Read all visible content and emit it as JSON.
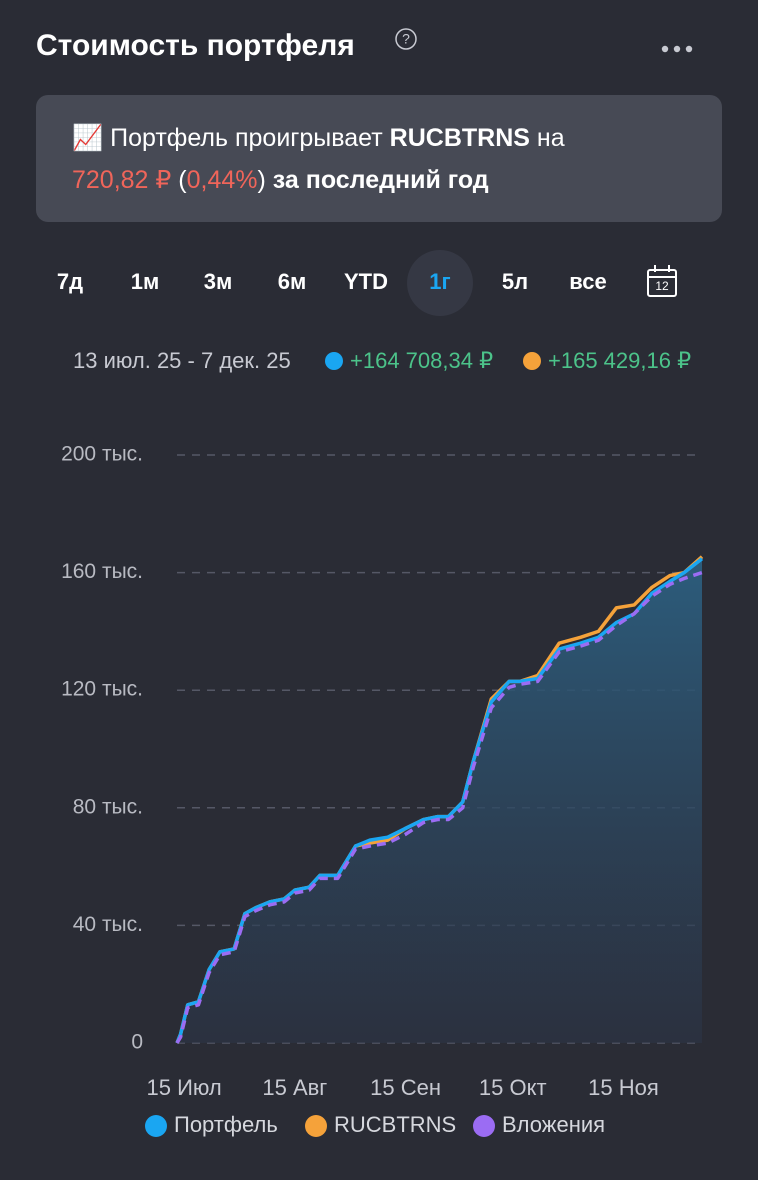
{
  "header": {
    "title": "Стоимость портфеля",
    "help_icon": "?"
  },
  "banner": {
    "emoji": "📈",
    "text1": "Портфель проигрывает",
    "ticker": "RUCBTRNS",
    "text2": "на",
    "amount": "720,82 ₽",
    "paren_open": "(",
    "percent": "0,44%",
    "paren_close": ")",
    "text3": "за последний год"
  },
  "tabs": {
    "items": [
      "7д",
      "1м",
      "3м",
      "6м",
      "YTD",
      "1г",
      "5л",
      "все"
    ],
    "selected": 5,
    "calendar_day": "12"
  },
  "summary": {
    "range": "13 июл. 25 - 7 дек. 25",
    "portfolio_change": "+164 708,34 ₽",
    "benchmark_change": "+165 429,16 ₽"
  },
  "chart_data": {
    "type": "line",
    "x": [
      "07-13",
      "07-14",
      "07-16",
      "07-19",
      "07-22",
      "07-25",
      "07-29",
      "08-01",
      "08-04",
      "08-08",
      "08-12",
      "08-15",
      "08-19",
      "08-22",
      "08-27",
      "09-01",
      "09-05",
      "09-10",
      "09-15",
      "09-20",
      "09-24",
      "09-27",
      "10-01",
      "10-04",
      "10-09",
      "10-14",
      "10-17",
      "10-22",
      "10-28",
      "11-03",
      "11-08",
      "11-13",
      "11-18",
      "11-23",
      "11-28",
      "12-02",
      "12-07"
    ],
    "xlim": [
      "07-13",
      "12-07"
    ],
    "xticks": [
      {
        "value": "07-15",
        "label": "15 Июл"
      },
      {
        "value": "08-15",
        "label": "15 Авг"
      },
      {
        "value": "09-15",
        "label": "15 Сен"
      },
      {
        "value": "10-15",
        "label": "15 Окт"
      },
      {
        "value": "11-15",
        "label": "15 Ноя"
      }
    ],
    "ylim": [
      0,
      200000
    ],
    "yticks": [
      0,
      {
        "value": 40000,
        "label": "40 тыс."
      },
      {
        "value": 80000,
        "label": "80 тыс."
      },
      {
        "value": 120000,
        "label": "120 тыс."
      },
      {
        "value": 160000,
        "label": "160 тыс."
      },
      {
        "value": 200000,
        "label": "200 тыс."
      }
    ],
    "grid": true,
    "series": [
      {
        "name": "Портфель",
        "color": "#1aa6f2",
        "area": true,
        "values": [
          0,
          3000,
          13000,
          14000,
          25000,
          31000,
          32000,
          44000,
          46000,
          48000,
          49000,
          52000,
          53000,
          57000,
          57000,
          67000,
          69000,
          70000,
          73000,
          76000,
          77000,
          77000,
          82000,
          96000,
          116000,
          123000,
          123000,
          124000,
          134000,
          136000,
          138000,
          143000,
          146000,
          153000,
          157000,
          160000,
          164708.34
        ]
      },
      {
        "name": "RUCBTRNS",
        "color": "#f5a23a",
        "values": [
          0,
          3000,
          13000,
          14000,
          25000,
          31000,
          32000,
          44000,
          46000,
          48000,
          49000,
          52000,
          53000,
          57000,
          57000,
          67000,
          68000,
          69000,
          73000,
          76000,
          77000,
          77000,
          82000,
          96000,
          117000,
          123000,
          123000,
          125000,
          136000,
          138000,
          140000,
          148000,
          149000,
          155000,
          159000,
          160000,
          165429.16
        ]
      },
      {
        "name": "Вложения",
        "color": "#9b6cf3",
        "dashed": true,
        "values": [
          0,
          2000,
          12000,
          13000,
          24000,
          30000,
          31000,
          43000,
          45000,
          47000,
          48000,
          51000,
          52000,
          56000,
          56000,
          66000,
          67000,
          68000,
          71000,
          75000,
          76000,
          76000,
          80000,
          94000,
          114000,
          121000,
          122000,
          123000,
          133000,
          135000,
          137000,
          142000,
          146000,
          152000,
          156000,
          158000,
          160000
        ]
      }
    ]
  }
}
